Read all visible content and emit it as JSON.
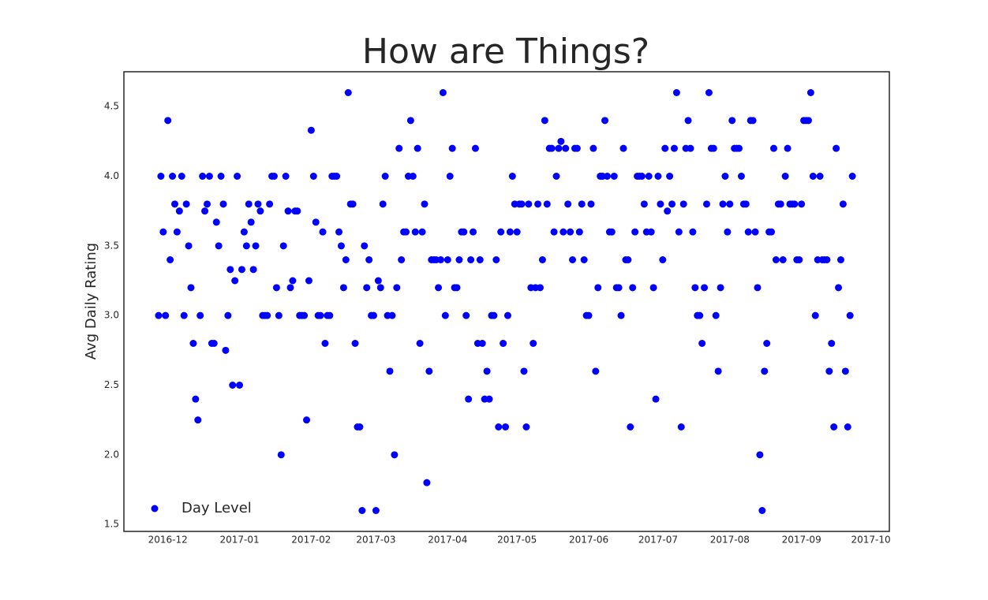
{
  "chart_data": {
    "type": "scatter",
    "title": "How are Things?",
    "y_label": "Avg Daily Rating",
    "legend": "lower left",
    "grid": false,
    "series": [
      {
        "name": "Day Level",
        "color": "#0000ff",
        "x": [
          -4,
          -3,
          -2,
          -1,
          0,
          1,
          2,
          3,
          4,
          5,
          6,
          7,
          8,
          9,
          10,
          11,
          12,
          13,
          14,
          15,
          16,
          17,
          18,
          19,
          20,
          21,
          22,
          23,
          24,
          25,
          26,
          27,
          28,
          29,
          30,
          31,
          32,
          33,
          34,
          35,
          36,
          37,
          38,
          39,
          40,
          41,
          42,
          43,
          44,
          45,
          46,
          47,
          48,
          49,
          50,
          51,
          52,
          53,
          54,
          55,
          56,
          57,
          58,
          59,
          60,
          61,
          62,
          63,
          64,
          65,
          66,
          67,
          68,
          69,
          70,
          71,
          72,
          73,
          74,
          75,
          76,
          77,
          78,
          79,
          80,
          81,
          82,
          83,
          84,
          85,
          86,
          87,
          88,
          89,
          90,
          91,
          92,
          93,
          94,
          95,
          96,
          97,
          98,
          99,
          100,
          101,
          102,
          103,
          104,
          105,
          106,
          107,
          108,
          109,
          110,
          111,
          112,
          113,
          114,
          115,
          116,
          117,
          118,
          119,
          120,
          121,
          122,
          123,
          124,
          125,
          126,
          127,
          128,
          129,
          130,
          131,
          132,
          133,
          134,
          135,
          136,
          137,
          138,
          139,
          140,
          141,
          142,
          143,
          144,
          145,
          146,
          147,
          148,
          149,
          150,
          151,
          152,
          153,
          154,
          155,
          156,
          157,
          158,
          159,
          160,
          161,
          162,
          163,
          164,
          165,
          166,
          167,
          168,
          169,
          170,
          171,
          172,
          173,
          174,
          175,
          176,
          177,
          178,
          179,
          180,
          181,
          182,
          183,
          184,
          185,
          186,
          187,
          188,
          189,
          190,
          191,
          192,
          193,
          194,
          195,
          196,
          197,
          198,
          199,
          200,
          201,
          202,
          203,
          204,
          205,
          206,
          207,
          208,
          209,
          210,
          211,
          212,
          213,
          214,
          215,
          216,
          217,
          218,
          219,
          220,
          221,
          222,
          223,
          224,
          225,
          226,
          227,
          228,
          229,
          230,
          231,
          232,
          233,
          234,
          235,
          236,
          237,
          238,
          239,
          240,
          241,
          242,
          243,
          244,
          245,
          246,
          247,
          248,
          249,
          250,
          251,
          252,
          253,
          254,
          255,
          256,
          257,
          258,
          259,
          260,
          261,
          262,
          263,
          264,
          265,
          266,
          267,
          268,
          269,
          270,
          271,
          272,
          273,
          274,
          275,
          276,
          277,
          278,
          279,
          280,
          281,
          282,
          283,
          284,
          285,
          286,
          287,
          288,
          289,
          290,
          291,
          292,
          293,
          294,
          295,
          296
        ],
        "values": [
          3.0,
          4.0,
          3.6,
          3.0,
          4.4,
          3.4,
          4.0,
          3.8,
          3.6,
          3.75,
          4.0,
          3.0,
          3.8,
          3.5,
          3.2,
          2.8,
          2.4,
          2.25,
          3.0,
          4.0,
          3.75,
          3.8,
          4.0,
          2.8,
          2.8,
          3.67,
          3.5,
          4.0,
          3.8,
          2.75,
          3.0,
          3.33,
          2.5,
          3.25,
          4.0,
          2.5,
          3.33,
          3.6,
          3.5,
          3.8,
          3.67,
          3.33,
          3.5,
          3.8,
          3.75,
          3.0,
          3.0,
          3.0,
          3.8,
          4.0,
          4.0,
          3.2,
          3.0,
          2.0,
          3.5,
          4.0,
          3.75,
          3.2,
          3.25,
          3.75,
          3.75,
          3.0,
          3.0,
          3.0,
          2.25,
          3.25,
          4.33,
          4.0,
          3.67,
          3.0,
          3.0,
          3.6,
          2.8,
          3.0,
          3.0,
          4.0,
          4.0,
          4.0,
          3.6,
          3.5,
          3.2,
          3.4,
          4.6,
          3.8,
          3.8,
          2.8,
          2.2,
          2.2,
          1.6,
          3.5,
          3.2,
          3.4,
          3.0,
          3.0,
          1.6,
          3.25,
          3.2,
          3.8,
          4.0,
          3.0,
          2.6,
          3.0,
          2.0,
          3.2,
          4.2,
          3.4,
          3.6,
          3.6,
          4.0,
          4.4,
          4.0,
          3.6,
          4.2,
          2.8,
          3.6,
          3.8,
          1.8,
          2.6,
          3.4,
          3.4,
          3.4,
          3.2,
          3.4,
          4.6,
          3.0,
          3.4,
          4.0,
          4.2,
          3.2,
          3.2,
          3.4,
          3.6,
          3.6,
          3.0,
          2.4,
          3.4,
          3.6,
          4.2,
          2.8,
          3.4,
          2.8,
          2.4,
          2.6,
          2.4,
          3.0,
          3.0,
          3.4,
          2.2,
          3.6,
          2.8,
          2.2,
          3.0,
          3.6,
          4.0,
          3.8,
          3.6,
          3.8,
          3.8,
          2.6,
          2.2,
          3.8,
          3.2,
          2.8,
          3.2,
          3.8,
          3.2,
          3.4,
          4.4,
          3.8,
          4.2,
          4.2,
          3.6,
          4.0,
          4.2,
          4.25,
          3.6,
          4.2,
          3.8,
          3.6,
          3.4,
          4.2,
          4.2,
          3.6,
          3.8,
          3.4,
          3.0,
          3.0,
          3.8,
          4.2,
          2.6,
          3.2,
          4.0,
          4.0,
          4.4,
          4.0,
          3.6,
          3.6,
          4.0,
          3.2,
          3.2,
          3.0,
          4.2,
          3.4,
          3.4,
          2.2,
          3.2,
          3.6,
          4.0,
          4.0,
          4.0,
          3.8,
          3.6,
          4.0,
          3.6,
          3.2,
          2.4,
          4.0,
          3.8,
          3.4,
          4.2,
          3.75,
          4.0,
          3.8,
          4.2,
          4.6,
          3.6,
          2.2,
          3.8,
          4.2,
          4.4,
          4.2,
          3.6,
          3.2,
          3.0,
          3.0,
          2.8,
          3.2,
          3.8,
          4.6,
          4.2,
          4.2,
          3.0,
          2.6,
          3.2,
          3.8,
          4.0,
          3.6,
          3.8,
          4.4,
          4.2,
          4.2,
          4.2,
          4.0,
          3.8,
          3.8,
          3.6,
          4.4,
          4.4,
          3.6,
          3.2,
          2.0,
          1.6,
          2.6,
          2.8,
          3.6,
          3.6,
          4.2,
          3.4,
          3.8,
          3.8,
          3.4,
          4.0,
          4.2,
          3.8,
          3.8,
          3.8,
          3.4,
          3.4,
          3.8,
          4.4,
          4.4,
          4.4,
          4.6,
          4.0,
          3.0,
          3.4,
          4.0,
          3.4,
          3.4,
          3.4,
          2.6,
          2.8,
          2.2,
          4.2,
          3.2,
          3.4,
          3.8,
          2.6,
          2.2,
          3.0,
          4.0
        ]
      }
    ],
    "xlim": [
      -19,
      312
    ],
    "xticks": [
      {
        "value": 0,
        "label": "2016-12"
      },
      {
        "value": 31,
        "label": "2017-01"
      },
      {
        "value": 62,
        "label": "2017-02"
      },
      {
        "value": 90,
        "label": "2017-03"
      },
      {
        "value": 121,
        "label": "2017-04"
      },
      {
        "value": 151,
        "label": "2017-05"
      },
      {
        "value": 182,
        "label": "2017-06"
      },
      {
        "value": 212,
        "label": "2017-07"
      },
      {
        "value": 243,
        "label": "2017-08"
      },
      {
        "value": 274,
        "label": "2017-09"
      },
      {
        "value": 304,
        "label": "2017-10"
      }
    ],
    "ylim": [
      1.45,
      4.75
    ],
    "yticks": [
      1.5,
      {
        "value": 2,
        "label": "2.0"
      },
      2.5,
      {
        "value": 3,
        "label": "3.0"
      },
      3.5,
      {
        "value": 4,
        "label": "4.0"
      },
      4.5
    ]
  }
}
